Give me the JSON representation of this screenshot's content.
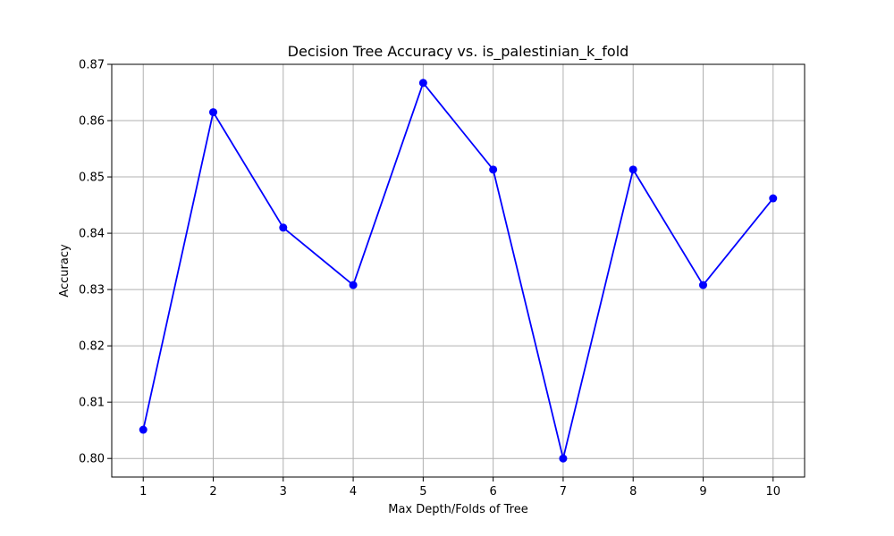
{
  "chart_data": {
    "type": "line",
    "title": "Decision Tree Accuracy vs. is_palestinian_k_fold",
    "xlabel": "Max Depth/Folds of Tree",
    "ylabel": "Accuracy",
    "x": [
      1,
      2,
      3,
      4,
      5,
      6,
      7,
      8,
      9,
      10
    ],
    "series": [
      {
        "values": [
          0.8051,
          0.8615,
          0.841,
          0.8308,
          0.8667,
          0.8513,
          0.8,
          0.8513,
          0.8308,
          0.8462
        ],
        "color": "#0000ff",
        "marker": "circle"
      }
    ],
    "xlim": [
      0.55,
      10.45
    ],
    "ylim": [
      0.7967,
      0.87
    ],
    "xticks": [
      1,
      2,
      3,
      4,
      5,
      6,
      7,
      8,
      9,
      10
    ],
    "xtick_labels": [
      "1",
      "2",
      "3",
      "4",
      "5",
      "6",
      "7",
      "8",
      "9",
      "10"
    ],
    "yticks": [
      0.8,
      0.81,
      0.82,
      0.83,
      0.84,
      0.85,
      0.86,
      0.87
    ],
    "ytick_labels": [
      "0.80",
      "0.81",
      "0.82",
      "0.83",
      "0.84",
      "0.85",
      "0.86",
      "0.87"
    ],
    "grid": true,
    "grid_color": "#b0b0b0"
  }
}
